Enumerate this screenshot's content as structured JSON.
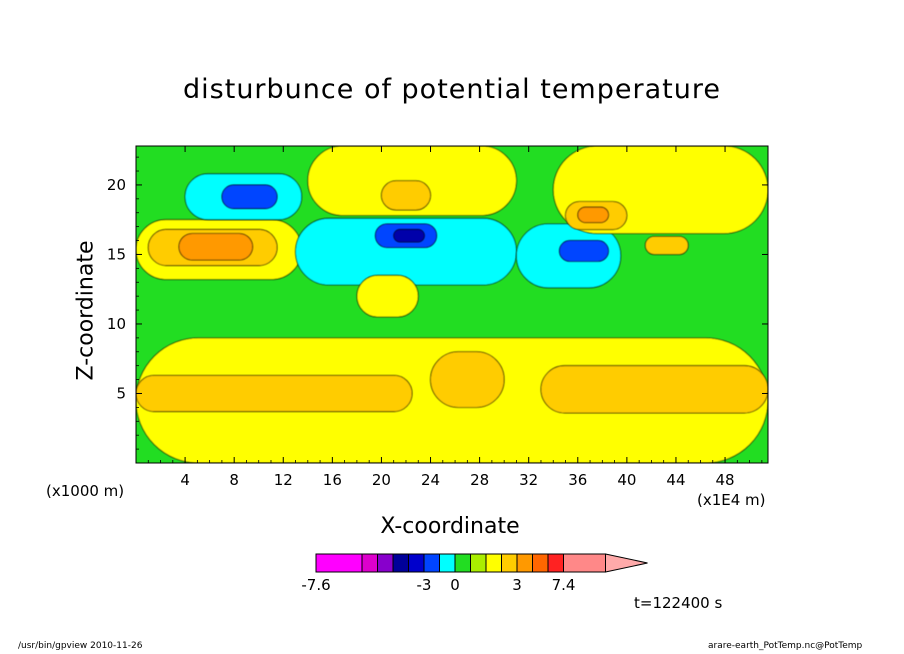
{
  "chart_data": {
    "type": "heatmap",
    "title": "disturbunce of potential temperature",
    "xlabel": "X-coordinate",
    "ylabel": "Z-coordinate",
    "x_unit": "(x1E4 m)",
    "z_unit": "(x1000 m)",
    "xlim": [
      0,
      51.5
    ],
    "ylim": [
      0,
      22.8
    ],
    "x_ticks": [
      4,
      8,
      12,
      16,
      20,
      24,
      28,
      32,
      36,
      40,
      44,
      48
    ],
    "y_ticks": [
      5,
      10,
      15,
      20
    ],
    "background_level_color": "#22dd22",
    "features": [
      {
        "level": "#ffff00",
        "x0": 0,
        "x1": 51.5,
        "z0": 0,
        "z1": 9.0
      },
      {
        "level": "#ffcc00",
        "x0": 0,
        "x1": 22.5,
        "z0": 3.7,
        "z1": 6.3
      },
      {
        "level": "#ffcc00",
        "x0": 24,
        "x1": 30,
        "z0": 4.0,
        "z1": 8.0
      },
      {
        "level": "#ffcc00",
        "x0": 33,
        "x1": 51.5,
        "z0": 3.6,
        "z1": 7.0
      },
      {
        "level": "#ffff00",
        "x0": 0,
        "x1": 13.5,
        "z0": 13.2,
        "z1": 17.5
      },
      {
        "level": "#ffcc00",
        "x0": 1,
        "x1": 11.5,
        "z0": 14.2,
        "z1": 16.8
      },
      {
        "level": "#ff9900",
        "x0": 3.5,
        "x1": 9.5,
        "z0": 14.6,
        "z1": 16.5
      },
      {
        "level": "#00ffff",
        "x0": 4,
        "x1": 13.5,
        "z0": 17.5,
        "z1": 20.8
      },
      {
        "level": "#0044ff",
        "x0": 7,
        "x1": 11.5,
        "z0": 18.3,
        "z1": 20.0
      },
      {
        "level": "#00ffff",
        "x0": 13,
        "x1": 31,
        "z0": 12.8,
        "z1": 17.6
      },
      {
        "level": "#0044ff",
        "x0": 19.5,
        "x1": 24.5,
        "z0": 15.5,
        "z1": 17.2
      },
      {
        "level": "#0000aa",
        "x0": 21,
        "x1": 23.5,
        "z0": 15.9,
        "z1": 16.8
      },
      {
        "level": "#ffff00",
        "x0": 14,
        "x1": 31,
        "z0": 17.8,
        "z1": 22.8
      },
      {
        "level": "#ffcc00",
        "x0": 20,
        "x1": 24,
        "z0": 18.2,
        "z1": 20.3
      },
      {
        "level": "#00ffff",
        "x0": 31,
        "x1": 39.5,
        "z0": 12.6,
        "z1": 17.2
      },
      {
        "level": "#0044ff",
        "x0": 34.5,
        "x1": 38.5,
        "z0": 14.5,
        "z1": 16.0
      },
      {
        "level": "#ffff00",
        "x0": 34,
        "x1": 51.5,
        "z0": 16.5,
        "z1": 22.8
      },
      {
        "level": "#ffcc00",
        "x0": 35,
        "x1": 40,
        "z0": 16.8,
        "z1": 18.8
      },
      {
        "level": "#ff9900",
        "x0": 36,
        "x1": 38.5,
        "z0": 17.3,
        "z1": 18.4
      },
      {
        "level": "#ffcc00",
        "x0": 41.5,
        "x1": 45,
        "z0": 15.0,
        "z1": 16.3
      },
      {
        "level": "#ffff00",
        "x0": 18,
        "x1": 23,
        "z0": 10.5,
        "z1": 13.5
      }
    ],
    "colorbar": {
      "colors": [
        "#ff00ff",
        "#dd00cc",
        "#8800cc",
        "#000099",
        "#0000cc",
        "#0044ff",
        "#00ffff",
        "#22dd22",
        "#aaee00",
        "#ffff00",
        "#ffcc00",
        "#ff9900",
        "#ff6600",
        "#ff2222",
        "#ff8888",
        "#ffaaaa"
      ],
      "labels": [
        "-7.6",
        "-3",
        "0",
        "3",
        "7.4"
      ]
    }
  },
  "timestamp": "t=122400 s",
  "footer_left": "/usr/bin/gpview  2010-11-26",
  "footer_right": "arare-earth_PotTemp.nc@PotTemp"
}
